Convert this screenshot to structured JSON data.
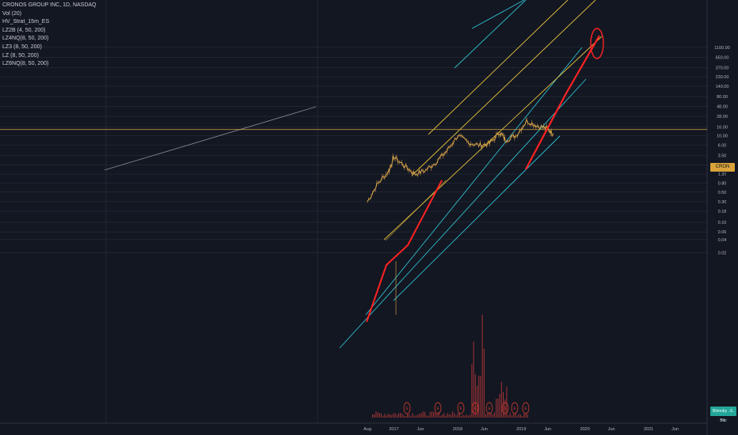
{
  "legend": {
    "title": "CRONOS GROUP INC, 1D, NASDAQ",
    "indicators": [
      "Vol (20)",
      "HV_Strat_15m_ES",
      "LZ2B (4, 50, 200)",
      "LZ4NQ(8, 50, 200)",
      "LZ3 (8, 50, 200)",
      "LZ (8, 50, 200)",
      "LZ6NQ(8, 50, 200)"
    ]
  },
  "price_tag": "CRON 13.90",
  "corner_tag": "Bitmoby . E. Bitc",
  "colors": {
    "background": "#131722",
    "grid": "#2a2e39",
    "candle": "#e0a94a",
    "cyan_channel": "#2fbfcf",
    "yellow_channel": "#e6c13c",
    "red_arrow": "#ff2222",
    "price_line": "#e0a94a",
    "volume": "#c23a3a",
    "earnings_marker": "#c0392b"
  },
  "chart_data": {
    "type": "line",
    "scale": "log",
    "yaxis_ticks": [
      "1100.00",
      "650.00",
      "370.00",
      "230.00",
      "140.00",
      "80.00",
      "48.00",
      "28.00",
      "16.00",
      "10.00",
      "6.00",
      "3.50",
      "2.10",
      "1.30",
      "0.80",
      "0.50",
      "0.30",
      "0.18",
      "0.10",
      "0.06",
      "0.04",
      "0.02"
    ],
    "xaxis_ticks": [
      "Aug",
      "2017",
      "Jun",
      "2018",
      "Jun",
      "2019",
      "Jun",
      "2020",
      "Jun",
      "2021",
      "Jun"
    ],
    "ylim": [
      0.02,
      1100
    ],
    "current_price": 13.9,
    "series": [
      {
        "name": "CRON",
        "x": [
          "2016-08",
          "2016-10",
          "2016-12",
          "2017-01",
          "2017-03",
          "2017-05",
          "2017-07",
          "2017-09",
          "2017-11",
          "2018-01",
          "2018-03",
          "2018-05",
          "2018-07",
          "2018-09",
          "2018-10",
          "2018-12",
          "2019-02",
          "2019-04",
          "2019-06",
          "2019-07"
        ],
        "values": [
          0.3,
          0.8,
          1.5,
          3.2,
          2.0,
          1.3,
          1.6,
          2.5,
          4.5,
          10.0,
          7.0,
          6.0,
          6.5,
          12.0,
          8.0,
          10.0,
          22.0,
          17.0,
          14.5,
          11.0
        ]
      }
    ],
    "earnings_markers": [
      "E",
      "E",
      "E",
      "E",
      "E",
      "E",
      "E",
      "E",
      "E"
    ]
  }
}
